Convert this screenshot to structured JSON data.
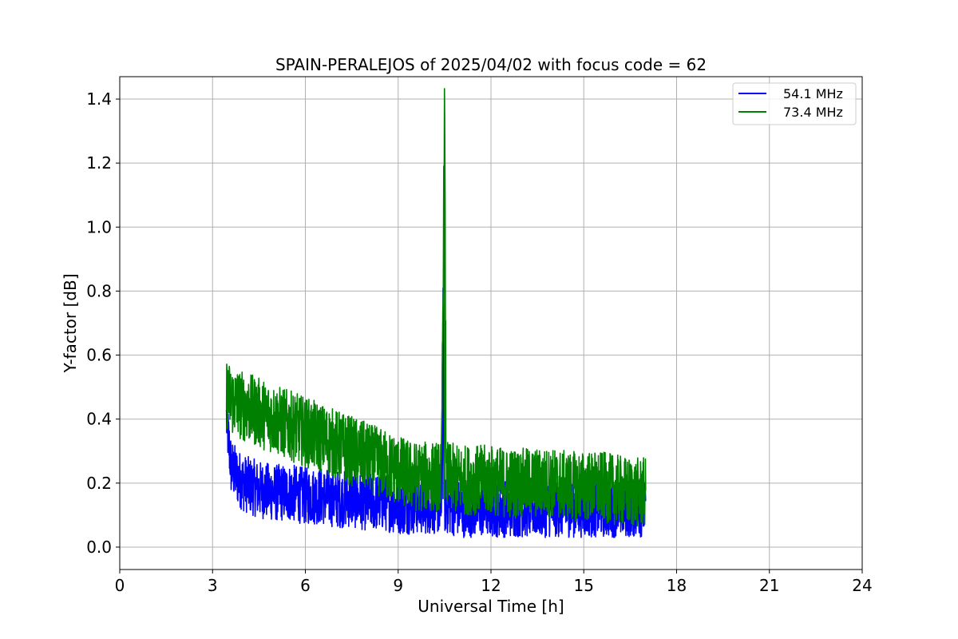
{
  "chart_data": {
    "type": "line",
    "title": "SPAIN-PERALEJOS of 2025/04/02 with focus code = 62",
    "xlabel": "Universal Time [h]",
    "ylabel": "Y-factor [dB]",
    "xlim": [
      0,
      24
    ],
    "ylim": [
      -0.07,
      1.47
    ],
    "xticks": [
      0,
      3,
      6,
      9,
      12,
      15,
      18,
      21,
      24
    ],
    "xtick_labels": [
      "0",
      "3",
      "6",
      "9",
      "12",
      "15",
      "18",
      "21",
      "24"
    ],
    "yticks": [
      0.0,
      0.2,
      0.4,
      0.6,
      0.8,
      1.0,
      1.2,
      1.4
    ],
    "ytick_labels": [
      "0.0",
      "0.2",
      "0.4",
      "0.6",
      "0.8",
      "1.0",
      "1.2",
      "1.4"
    ],
    "grid": true,
    "legend_position": "top-right",
    "series": [
      {
        "name": "54.1 MHz",
        "color": "#0000ff",
        "x": [
          3.45,
          3.6,
          3.8,
          4.0,
          4.5,
          5.0,
          5.5,
          6.0,
          6.5,
          7.0,
          7.5,
          8.0,
          8.5,
          9.0,
          9.5,
          10.0,
          10.4,
          10.45,
          10.5,
          10.55,
          11.0,
          11.5,
          12.0,
          12.5,
          13.0,
          13.5,
          14.0,
          14.5,
          15.0,
          15.5,
          16.0,
          16.5,
          17.0
        ],
        "values": [
          0.4,
          0.25,
          0.22,
          0.2,
          0.18,
          0.17,
          0.17,
          0.16,
          0.16,
          0.15,
          0.15,
          0.14,
          0.14,
          0.13,
          0.13,
          0.13,
          0.13,
          0.81,
          0.13,
          0.13,
          0.12,
          0.12,
          0.12,
          0.12,
          0.12,
          0.12,
          0.12,
          0.12,
          0.12,
          0.12,
          0.12,
          0.12,
          0.12
        ],
        "noise": 0.09
      },
      {
        "name": "73.4 MHz",
        "color": "#008000",
        "x": [
          3.45,
          3.6,
          4.0,
          4.5,
          5.0,
          5.5,
          6.0,
          6.5,
          7.0,
          7.5,
          8.0,
          8.5,
          9.0,
          9.5,
          10.0,
          10.4,
          10.5,
          10.55,
          11.0,
          11.5,
          12.0,
          12.5,
          13.0,
          13.5,
          14.0,
          14.5,
          15.0,
          15.5,
          16.0,
          16.5,
          17.0
        ],
        "values": [
          0.48,
          0.46,
          0.44,
          0.42,
          0.4,
          0.38,
          0.36,
          0.34,
          0.32,
          0.3,
          0.28,
          0.26,
          0.24,
          0.22,
          0.22,
          0.22,
          1.4,
          0.22,
          0.21,
          0.21,
          0.21,
          0.2,
          0.2,
          0.2,
          0.2,
          0.19,
          0.19,
          0.19,
          0.18,
          0.17,
          0.17
        ],
        "noise": 0.11
      }
    ]
  }
}
